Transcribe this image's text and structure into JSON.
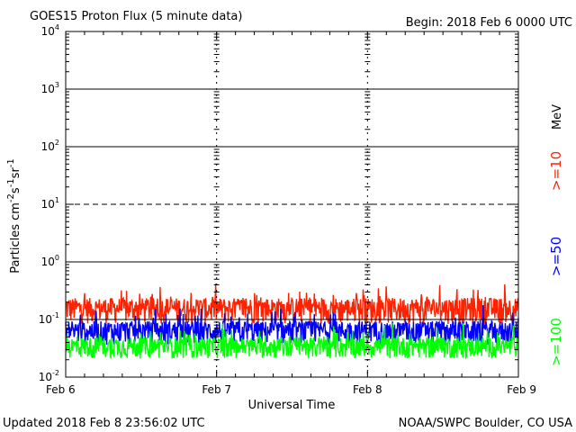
{
  "header": {
    "title": "GOES15 Proton Flux (5 minute data)",
    "begin": "Begin: 2018 Feb 6 0000 UTC"
  },
  "footer": {
    "updated": "Updated 2018 Feb  8 23:56:02 UTC",
    "credit": "NOAA/SWPC Boulder, CO USA"
  },
  "chart_data": {
    "type": "line",
    "title": "GOES15 Proton Flux (5 minute data)",
    "xlabel": "Universal Time",
    "ylabel": "Particles cm⁻²s⁻¹sr⁻¹",
    "yscale": "log",
    "ylim": [
      0.01,
      10000
    ],
    "x_ticks": [
      "Feb 6",
      "Feb 7",
      "Feb 8",
      "Feb 9"
    ],
    "y_ticks": [
      {
        "base": "10",
        "exp": "4"
      },
      {
        "base": "10",
        "exp": "3"
      },
      {
        "base": "10",
        "exp": "2"
      },
      {
        "base": "10",
        "exp": "1"
      },
      {
        "base": "10",
        "exp": "0"
      },
      {
        "base": "10",
        "exp": "-1"
      },
      {
        "base": "10",
        "exp": "-2"
      }
    ],
    "thresholds": [
      {
        "value": 1000,
        "style": "solid"
      },
      {
        "value": 100,
        "style": "solid"
      },
      {
        "value": 10,
        "style": "dashed"
      },
      {
        "value": 1,
        "style": "solid"
      },
      {
        "value": 0.1,
        "style": "solid"
      }
    ],
    "legend_unit": "MeV",
    "series": [
      {
        "name": ">=10",
        "color": "#ff2200",
        "baseline": 0.16,
        "spread": 0.6
      },
      {
        "name": ">=50",
        "color": "#0000ff",
        "baseline": 0.065,
        "spread": 0.55
      },
      {
        "name": ">=100",
        "color": "#00ff00",
        "baseline": 0.035,
        "spread": 0.5
      }
    ]
  }
}
